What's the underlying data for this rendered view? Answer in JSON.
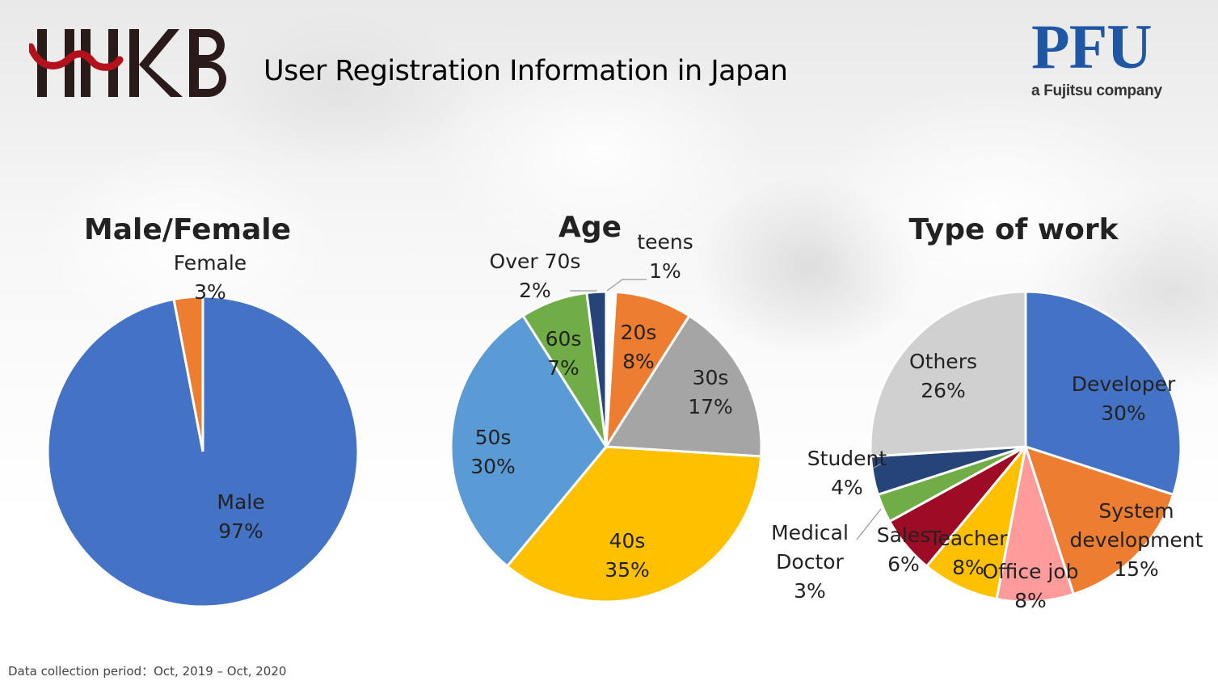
{
  "header": {
    "logo_left_text": "HHKB",
    "title": "User Registration Information in Japan",
    "logo_right": {
      "mark": "PFU",
      "tagline": "a Fujitsu company"
    }
  },
  "footer": {
    "text": "Data collection period：Oct, 2019 – Oct, 2020"
  },
  "colors": {
    "blue": "#4472c4",
    "orange": "#ed7d31",
    "gray": "#a5a5a5",
    "gold": "#ffc000",
    "light_blue": "#5b9bd5",
    "green": "#70ad47",
    "navy": "#264478",
    "dark_red": "#9e0b24",
    "pink": "#ff9b9b",
    "light_gray": "#d0d0d0"
  },
  "chart_data": [
    {
      "type": "pie",
      "title": "Male/Female",
      "slices": [
        {
          "name": "Male",
          "value": 97,
          "label": "97%",
          "color": "#4472c4"
        },
        {
          "name": "Female",
          "value": 3,
          "label": "3%",
          "color": "#ed7d31"
        }
      ]
    },
    {
      "type": "pie",
      "title": "Age",
      "slices": [
        {
          "name": "teens",
          "value": 1,
          "label": "1%",
          "color": "#ffffff"
        },
        {
          "name": "20s",
          "value": 8,
          "label": "8%",
          "color": "#ed7d31"
        },
        {
          "name": "30s",
          "value": 17,
          "label": "17%",
          "color": "#a5a5a5"
        },
        {
          "name": "40s",
          "value": 35,
          "label": "35%",
          "color": "#ffc000"
        },
        {
          "name": "50s",
          "value": 30,
          "label": "30%",
          "color": "#5b9bd5"
        },
        {
          "name": "60s",
          "value": 7,
          "label": "7%",
          "color": "#70ad47"
        },
        {
          "name": "Over 70s",
          "value": 2,
          "label": "2%",
          "color": "#264478"
        }
      ]
    },
    {
      "type": "pie",
      "title": "Type of work",
      "slices": [
        {
          "name": "Developer",
          "value": 30,
          "label": "30%",
          "color": "#4472c4"
        },
        {
          "name": "System development",
          "lines": [
            "System",
            "development"
          ],
          "value": 15,
          "label": "15%",
          "color": "#ed7d31"
        },
        {
          "name": "Office job",
          "value": 8,
          "label": "8%",
          "color": "#ff9b9b"
        },
        {
          "name": "Teacher",
          "value": 8,
          "label": "8%",
          "color": "#ffc000"
        },
        {
          "name": "Sales",
          "value": 6,
          "label": "6%",
          "color": "#9e0b24"
        },
        {
          "name": "Medical Doctor",
          "lines": [
            "Medical",
            "Doctor"
          ],
          "value": 3,
          "label": "3%",
          "color": "#70ad47"
        },
        {
          "name": "Student",
          "value": 4,
          "label": "4%",
          "color": "#264478"
        },
        {
          "name": "Others",
          "value": 26,
          "label": "26%",
          "color": "#d0d0d0"
        }
      ]
    }
  ]
}
